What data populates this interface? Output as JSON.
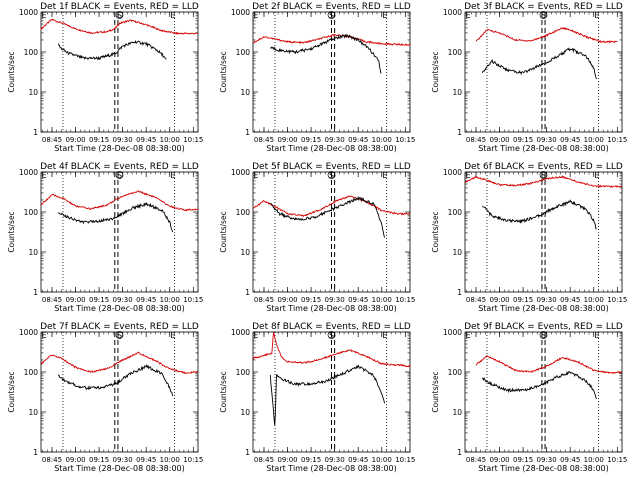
{
  "chart_data": [
    {
      "type": "line",
      "title": "Det 1f BLACK = Events, RED = LLD",
      "xlabel": "Start Time (28-Dec-08 08:38:00)",
      "ylabel": "Counts/sec",
      "yscale": "log",
      "ylim": [
        1,
        1000
      ],
      "xlim": [
        "08:38",
        "10:18"
      ],
      "xticks": [
        "08:45",
        "09:00",
        "09:15",
        "09:30",
        "09:45",
        "10:00",
        "10:15"
      ],
      "yticks": [
        "1",
        "10",
        "100",
        "1000"
      ],
      "markers": [
        {
          "label": "E",
          "time": "08:38"
        },
        {
          "label": "S",
          "time": "09:28"
        },
        {
          "label": "E",
          "time": "10:02"
        }
      ],
      "dotted_lines": [
        "08:52",
        "10:03"
      ],
      "dashed_lines": [
        "09:25",
        "09:27"
      ],
      "series": [
        {
          "color": "#d40000",
          "x": [
            "08:38",
            "08:45",
            "08:52",
            "09:00",
            "09:10",
            "09:20",
            "09:25",
            "09:28",
            "09:35",
            "09:45",
            "09:55",
            "10:05",
            "10:18"
          ],
          "y": [
            380,
            650,
            520,
            380,
            300,
            320,
            380,
            520,
            620,
            480,
            340,
            290,
            290
          ]
        },
        {
          "color": "#000000",
          "x": [
            "08:49",
            "08:50",
            "08:55",
            "09:05",
            "09:15",
            "09:25",
            "09:30",
            "09:38",
            "09:45",
            "09:52",
            "09:56",
            "09:58"
          ],
          "y": [
            170,
            130,
            95,
            70,
            70,
            90,
            140,
            180,
            160,
            110,
            80,
            60
          ]
        }
      ]
    },
    {
      "type": "line",
      "title": "Det 2f BLACK = Events, RED = LLD",
      "xlabel": "Start Time (28-Dec-08 08:38:00)",
      "ylabel": "Counts/sec",
      "yscale": "log",
      "ylim": [
        1,
        1000
      ],
      "xlim": [
        "08:38",
        "10:18"
      ],
      "xticks": [
        "08:45",
        "09:00",
        "09:15",
        "09:30",
        "09:45",
        "10:00",
        "10:15"
      ],
      "yticks": [
        "1",
        "10",
        "100",
        "1000"
      ],
      "markers": [
        {
          "label": "E",
          "time": "08:38"
        },
        {
          "label": "S",
          "time": "09:28"
        },
        {
          "label": "E",
          "time": "10:02"
        }
      ],
      "dotted_lines": [
        "08:52",
        "10:03"
      ],
      "dashed_lines": [
        "09:28",
        "09:30"
      ],
      "series": [
        {
          "color": "#d40000",
          "x": [
            "08:38",
            "08:45",
            "08:52",
            "09:00",
            "09:10",
            "09:20",
            "09:30",
            "09:40",
            "09:50",
            "10:00",
            "10:10",
            "10:18"
          ],
          "y": [
            170,
            240,
            210,
            180,
            170,
            210,
            270,
            240,
            180,
            160,
            155,
            150
          ]
        },
        {
          "color": "#000000",
          "x": [
            "08:49",
            "08:55",
            "09:05",
            "09:15",
            "09:25",
            "09:30",
            "09:38",
            "09:45",
            "09:52",
            "09:58",
            "10:00"
          ],
          "y": [
            130,
            110,
            100,
            120,
            180,
            220,
            260,
            200,
            120,
            60,
            25
          ]
        }
      ]
    },
    {
      "type": "line",
      "title": "Det 3f BLACK = Events, RED = LLD",
      "xlabel": "Start Time (28-Dec-08 08:38:00)",
      "ylabel": "Counts/sec",
      "yscale": "log",
      "ylim": [
        1,
        1000
      ],
      "xlim": [
        "08:38",
        "10:18"
      ],
      "xticks": [
        "08:45",
        "09:00",
        "09:15",
        "09:30",
        "09:45",
        "10:00",
        "10:15"
      ],
      "yticks": [
        "1",
        "10",
        "100",
        "1000"
      ],
      "markers": [
        {
          "label": "E",
          "time": "08:38"
        },
        {
          "label": "S",
          "time": "09:28"
        },
        {
          "label": "E",
          "time": "10:02"
        }
      ],
      "dotted_lines": [
        "08:52",
        "10:03"
      ],
      "dashed_lines": [
        "09:27",
        "09:29"
      ],
      "series": [
        {
          "color": "#d40000",
          "x": [
            "08:45",
            "08:52",
            "09:00",
            "09:10",
            "09:20",
            "09:30",
            "09:40",
            "09:45",
            "09:55",
            "10:05",
            "10:15"
          ],
          "y": [
            180,
            360,
            300,
            200,
            190,
            260,
            400,
            360,
            240,
            180,
            180
          ]
        },
        {
          "color": "#000000",
          "x": [
            "08:49",
            "08:55",
            "09:05",
            "09:15",
            "09:25",
            "09:35",
            "09:45",
            "09:55",
            "10:00",
            "10:02"
          ],
          "y": [
            30,
            60,
            35,
            30,
            45,
            70,
            120,
            80,
            40,
            20
          ]
        }
      ]
    },
    {
      "type": "line",
      "title": "Det 4f BLACK = Events, RED = LLD",
      "xlabel": "Start Time (28-Dec-08 08:38:00)",
      "ylabel": "Counts/sec",
      "yscale": "log",
      "ylim": [
        1,
        1000
      ],
      "xlim": [
        "08:38",
        "10:18"
      ],
      "xticks": [
        "08:45",
        "09:00",
        "09:15",
        "09:30",
        "09:45",
        "10:00",
        "10:15"
      ],
      "yticks": [
        "1",
        "10",
        "100",
        "1000"
      ],
      "markers": [
        {
          "label": "E",
          "time": "08:38"
        },
        {
          "label": "S",
          "time": "09:28"
        },
        {
          "label": "E",
          "time": "10:02"
        }
      ],
      "dotted_lines": [
        "08:52",
        "10:03"
      ],
      "dashed_lines": [
        "09:25",
        "09:27"
      ],
      "series": [
        {
          "color": "#d40000",
          "x": [
            "08:38",
            "08:45",
            "08:52",
            "09:00",
            "09:10",
            "09:20",
            "09:30",
            "09:40",
            "09:50",
            "10:00",
            "10:10",
            "10:18"
          ],
          "y": [
            150,
            270,
            220,
            140,
            120,
            150,
            250,
            330,
            240,
            140,
            110,
            120
          ]
        },
        {
          "color": "#000000",
          "x": [
            "08:49",
            "08:55",
            "09:05",
            "09:15",
            "09:25",
            "09:35",
            "09:45",
            "09:55",
            "10:00",
            "10:02"
          ],
          "y": [
            100,
            75,
            55,
            60,
            70,
            120,
            160,
            110,
            55,
            30
          ]
        }
      ]
    },
    {
      "type": "line",
      "title": "Det 5f BLACK = Events, RED = LLD",
      "xlabel": "Start Time (28-Dec-08 08:38:00)",
      "ylabel": "Counts/sec",
      "yscale": "log",
      "ylim": [
        1,
        1000
      ],
      "xlim": [
        "08:38",
        "10:18"
      ],
      "xticks": [
        "08:45",
        "09:00",
        "09:15",
        "09:30",
        "09:45",
        "10:00",
        "10:15"
      ],
      "yticks": [
        "1",
        "10",
        "100",
        "1000"
      ],
      "markers": [
        {
          "label": "E",
          "time": "08:38"
        },
        {
          "label": "S",
          "time": "09:28"
        },
        {
          "label": "E",
          "time": "10:02"
        }
      ],
      "dotted_lines": [
        "08:52",
        "10:03"
      ],
      "dashed_lines": [
        "09:28",
        "09:30"
      ],
      "series": [
        {
          "color": "#d40000",
          "x": [
            "08:38",
            "08:45",
            "08:52",
            "09:00",
            "09:10",
            "09:20",
            "09:30",
            "09:40",
            "09:50",
            "10:00",
            "10:10",
            "10:18"
          ],
          "y": [
            120,
            190,
            140,
            90,
            80,
            110,
            180,
            250,
            180,
            110,
            90,
            90
          ]
        },
        {
          "color": "#000000",
          "x": [
            "08:49",
            "08:55",
            "09:05",
            "09:15",
            "09:25",
            "09:35",
            "09:45",
            "09:55",
            "10:00",
            "10:02"
          ],
          "y": [
            160,
            90,
            65,
            70,
            100,
            150,
            220,
            160,
            50,
            20
          ]
        }
      ]
    },
    {
      "type": "line",
      "title": "Det 6f BLACK = Events, RED = LLD",
      "xlabel": "Start Time (28-Dec-08 08:38:00)",
      "ylabel": "Counts/sec",
      "yscale": "log",
      "ylim": [
        1,
        1000
      ],
      "xlim": [
        "08:38",
        "10:18"
      ],
      "xticks": [
        "08:45",
        "09:00",
        "09:15",
        "09:30",
        "09:45",
        "10:00",
        "10:15"
      ],
      "yticks": [
        "1",
        "10",
        "100",
        "1000"
      ],
      "markers": [
        {
          "label": "E",
          "time": "08:38"
        },
        {
          "label": "S",
          "time": "09:28"
        },
        {
          "label": "E",
          "time": "10:02"
        }
      ],
      "dotted_lines": [
        "08:52",
        "10:03"
      ],
      "dashed_lines": [
        "09:27",
        "09:29"
      ],
      "series": [
        {
          "color": "#d40000",
          "x": [
            "08:38",
            "08:45",
            "08:52",
            "09:00",
            "09:10",
            "09:20",
            "09:30",
            "09:40",
            "09:50",
            "10:00",
            "10:10",
            "10:18"
          ],
          "y": [
            550,
            750,
            620,
            480,
            460,
            520,
            680,
            760,
            560,
            450,
            430,
            440
          ]
        },
        {
          "color": "#000000",
          "x": [
            "08:49",
            "08:55",
            "09:05",
            "09:15",
            "09:25",
            "09:35",
            "09:45",
            "09:55",
            "10:00",
            "10:02"
          ],
          "y": [
            150,
            80,
            60,
            60,
            80,
            130,
            180,
            120,
            60,
            35
          ]
        }
      ]
    },
    {
      "type": "line",
      "title": "Det 7f BLACK = Events, RED = LLD",
      "xlabel": "Start Time (28-Dec-08 08:38:00)",
      "ylabel": "Counts/sec",
      "yscale": "log",
      "ylim": [
        1,
        1000
      ],
      "xlim": [
        "08:38",
        "10:18"
      ],
      "xticks": [
        "08:45",
        "09:00",
        "09:15",
        "09:30",
        "09:45",
        "10:00",
        "10:15"
      ],
      "yticks": [
        "1",
        "10",
        "100",
        "1000"
      ],
      "markers": [
        {
          "label": "E",
          "time": "08:38"
        },
        {
          "label": "S",
          "time": "09:28"
        },
        {
          "label": "E",
          "time": "10:02"
        }
      ],
      "dotted_lines": [
        "08:52",
        "10:03"
      ],
      "dashed_lines": [
        "09:25",
        "09:27"
      ],
      "series": [
        {
          "color": "#d40000",
          "x": [
            "08:38",
            "08:45",
            "08:52",
            "09:00",
            "09:10",
            "09:20",
            "09:30",
            "09:40",
            "09:50",
            "10:00",
            "10:10",
            "10:18"
          ],
          "y": [
            160,
            270,
            210,
            130,
            100,
            120,
            200,
            300,
            200,
            120,
            95,
            100
          ]
        },
        {
          "color": "#000000",
          "x": [
            "08:49",
            "08:55",
            "09:05",
            "09:15",
            "09:25",
            "09:35",
            "09:45",
            "09:55",
            "10:00",
            "10:02"
          ],
          "y": [
            80,
            55,
            40,
            40,
            50,
            90,
            140,
            90,
            40,
            25
          ]
        }
      ]
    },
    {
      "type": "line",
      "title": "Det 8f BLACK = Events, RED = LLD",
      "xlabel": "Start Time (28-Dec-08 08:38:00)",
      "ylabel": "Counts/sec",
      "yscale": "log",
      "ylim": [
        1,
        1000
      ],
      "xlim": [
        "08:38",
        "10:18"
      ],
      "xticks": [
        "08:45",
        "09:00",
        "09:15",
        "09:30",
        "09:45",
        "10:00",
        "10:15"
      ],
      "yticks": [
        "1",
        "10",
        "100",
        "1000"
      ],
      "markers": [
        {
          "label": "E",
          "time": "08:38"
        },
        {
          "label": "S",
          "time": "09:28"
        },
        {
          "label": "E",
          "time": "10:02"
        }
      ],
      "dotted_lines": [
        "08:52",
        "10:03"
      ],
      "dashed_lines": [
        "09:28",
        "09:30"
      ],
      "series": [
        {
          "color": "#d40000",
          "x": [
            "08:38",
            "08:45",
            "08:50",
            "08:51",
            "08:53",
            "08:56",
            "09:00",
            "09:10",
            "09:20",
            "09:30",
            "09:40",
            "09:50",
            "10:00",
            "10:10",
            "10:18"
          ],
          "y": [
            220,
            260,
            300,
            1000,
            500,
            240,
            180,
            170,
            200,
            280,
            350,
            250,
            160,
            150,
            140
          ]
        },
        {
          "color": "#000000",
          "x": [
            "08:49",
            "08:52",
            "08:53",
            "08:55",
            "09:05",
            "09:15",
            "09:25",
            "09:35",
            "09:45",
            "09:55",
            "10:00",
            "10:02"
          ],
          "y": [
            80,
            4,
            90,
            70,
            50,
            50,
            60,
            90,
            140,
            80,
            30,
            15
          ]
        }
      ]
    },
    {
      "type": "line",
      "title": "Det 9f BLACK = Events, RED = LLD",
      "xlabel": "Start Time (28-Dec-08 08:38:00)",
      "ylabel": "Counts/sec",
      "yscale": "log",
      "ylim": [
        1,
        1000
      ],
      "xlim": [
        "08:38",
        "10:18"
      ],
      "xticks": [
        "08:45",
        "09:00",
        "09:15",
        "09:30",
        "09:45",
        "10:00",
        "10:15"
      ],
      "yticks": [
        "1",
        "10",
        "100",
        "1000"
      ],
      "markers": [
        {
          "label": "E",
          "time": "08:38"
        },
        {
          "label": "S",
          "time": "09:28"
        },
        {
          "label": "E",
          "time": "10:02"
        }
      ],
      "dotted_lines": [
        "08:52",
        "10:03"
      ],
      "dashed_lines": [
        "09:27",
        "09:29"
      ],
      "series": [
        {
          "color": "#d40000",
          "x": [
            "08:45",
            "08:52",
            "09:00",
            "09:10",
            "09:20",
            "09:30",
            "09:40",
            "09:50",
            "10:00",
            "10:10",
            "10:18"
          ],
          "y": [
            150,
            250,
            180,
            110,
            100,
            140,
            230,
            180,
            110,
            95,
            100
          ]
        },
        {
          "color": "#000000",
          "x": [
            "08:49",
            "08:55",
            "09:05",
            "09:15",
            "09:25",
            "09:35",
            "09:45",
            "09:55",
            "10:00",
            "10:02"
          ],
          "y": [
            70,
            50,
            35,
            35,
            45,
            70,
            100,
            60,
            35,
            20
          ]
        }
      ]
    }
  ]
}
